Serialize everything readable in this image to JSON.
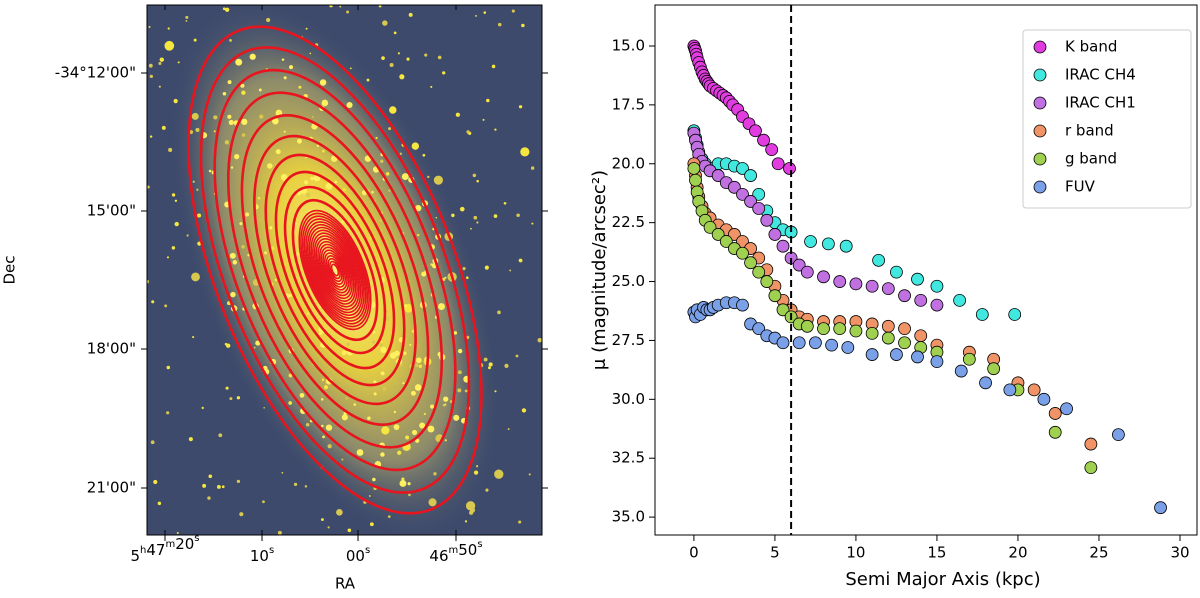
{
  "chart_data": [
    {
      "type": "image",
      "xlabel": "RA",
      "ylabel": "Dec",
      "xtick_labels": [
        [
          [
            "5",
            "h"
          ],
          [
            "47",
            "m"
          ],
          [
            "20",
            "s"
          ]
        ],
        [
          [
            "10",
            "s"
          ]
        ],
        [
          [
            "00",
            "s"
          ]
        ],
        [
          [
            "46",
            "m"
          ],
          [
            "50",
            "s"
          ]
        ]
      ],
      "ytick_labels": [
        "-34°12'00\"",
        "15'00\"",
        "18'00\"",
        "21'00\""
      ]
    },
    {
      "type": "scatter",
      "xlabel": "Semi Major Axis (kpc)",
      "ylabel": "μ (magnitude/arcsec²)",
      "xlim": [
        -2.4,
        31.05
      ],
      "ylim": [
        35.76,
        13.26
      ],
      "xticks": [
        0,
        5,
        10,
        15,
        20,
        25,
        30
      ],
      "yticks": [
        {
          "value": 15,
          "label": "15.0"
        },
        17.5,
        {
          "value": 20,
          "label": "20.0"
        },
        22.5,
        {
          "value": 25,
          "label": "25.0"
        },
        27.5,
        {
          "value": 30,
          "label": "30.0"
        },
        32.5,
        {
          "value": 35,
          "label": "35.0"
        }
      ],
      "vline": 6,
      "legend": "upper right",
      "series": [
        {
          "name": "K band",
          "color": "#e03ce0",
          "x": [
            0,
            0.05,
            0.1,
            0.15,
            0.2,
            0.3,
            0.4,
            0.5,
            0.6,
            0.7,
            0.8,
            0.9,
            1.0,
            1.2,
            1.4,
            1.6,
            1.8,
            2.0,
            2.2,
            2.4,
            2.7,
            3.0,
            3.4,
            3.8,
            4.3,
            4.8,
            5.2,
            5.9
          ],
          "values": [
            15.0,
            15.1,
            15.2,
            15.35,
            15.5,
            15.7,
            15.9,
            16.1,
            16.25,
            16.4,
            16.5,
            16.6,
            16.7,
            16.8,
            16.9,
            17.0,
            17.1,
            17.2,
            17.35,
            17.5,
            17.7,
            18.0,
            18.3,
            18.6,
            19.0,
            19.4,
            20.0,
            20.2
          ]
        },
        {
          "name": "IRAC CH4",
          "color": "#40e8e0",
          "x": [
            0,
            0.1,
            0.2,
            0.3,
            0.5,
            0.7,
            1.0,
            1.5,
            2.0,
            2.5,
            3.0,
            3.5,
            4.0,
            4.5,
            5.0,
            5.5,
            6.0,
            7.2,
            8.3,
            9.4,
            11.4,
            12.5,
            13.8,
            15.0,
            16.4,
            17.8,
            19.8
          ],
          "values": [
            18.6,
            18.9,
            19.2,
            19.5,
            19.8,
            20.0,
            20.2,
            20.0,
            20.0,
            20.1,
            20.2,
            20.5,
            21.3,
            22.0,
            22.5,
            22.8,
            22.9,
            23.3,
            23.4,
            23.5,
            24.1,
            24.6,
            24.9,
            25.2,
            25.8,
            26.4,
            26.4
          ]
        },
        {
          "name": "IRAC CH1",
          "color": "#c070e0",
          "x": [
            0,
            0.1,
            0.2,
            0.3,
            0.5,
            0.7,
            1.0,
            1.5,
            2.0,
            2.5,
            3.0,
            3.5,
            4.0,
            4.5,
            5.0,
            5.5,
            6.0,
            6.5,
            7.0,
            8.0,
            9.0,
            10.0,
            11.0,
            12.0,
            13.0,
            14.0,
            15.0
          ],
          "values": [
            18.7,
            19.0,
            19.3,
            19.6,
            19.9,
            20.1,
            20.3,
            20.5,
            20.8,
            21.0,
            21.3,
            21.6,
            21.9,
            22.4,
            23.0,
            23.5,
            24.0,
            24.3,
            24.6,
            24.8,
            25.0,
            25.1,
            25.2,
            25.3,
            25.6,
            25.8,
            26.0
          ]
        },
        {
          "name": "r band",
          "color": "#f09468",
          "x": [
            0,
            0.1,
            0.2,
            0.3,
            0.5,
            0.7,
            1.0,
            1.5,
            2.0,
            2.5,
            3.0,
            3.5,
            4.0,
            4.5,
            5.0,
            5.5,
            6.0,
            6.5,
            7.0,
            8.0,
            9.0,
            10.0,
            11.0,
            12.0,
            13.0,
            14.0,
            15.0,
            17.0,
            18.5,
            20.0,
            21.0,
            22.3,
            24.5
          ],
          "values": [
            20.0,
            20.5,
            21.0,
            21.4,
            21.8,
            22.1,
            22.3,
            22.6,
            22.8,
            23.0,
            23.3,
            23.6,
            24.0,
            24.5,
            25.2,
            25.8,
            26.2,
            26.5,
            26.6,
            26.7,
            26.7,
            26.7,
            26.8,
            26.9,
            27.0,
            27.3,
            27.7,
            28.0,
            28.3,
            29.3,
            29.6,
            30.6,
            31.9
          ]
        },
        {
          "name": "g band",
          "color": "#a0d050",
          "x": [
            0,
            0.1,
            0.2,
            0.3,
            0.5,
            0.7,
            1.0,
            1.5,
            2.0,
            2.5,
            3.0,
            3.5,
            4.0,
            4.5,
            5.0,
            5.5,
            6.0,
            6.5,
            7.0,
            8.0,
            9.0,
            10.0,
            11.0,
            12.0,
            13.0,
            14.0,
            15.0,
            17.0,
            18.5,
            20.0,
            22.3,
            24.5
          ],
          "values": [
            20.2,
            20.7,
            21.2,
            21.6,
            22.0,
            22.4,
            22.7,
            23.0,
            23.3,
            23.6,
            23.8,
            24.2,
            24.6,
            25.0,
            25.6,
            26.2,
            26.5,
            26.8,
            26.9,
            27.0,
            27.0,
            27.1,
            27.2,
            27.4,
            27.6,
            27.8,
            28.0,
            28.3,
            28.7,
            29.6,
            31.4,
            32.9
          ]
        },
        {
          "name": "FUV",
          "color": "#7aa0e8",
          "x": [
            0,
            0.1,
            0.2,
            0.4,
            0.6,
            0.8,
            1.0,
            1.2,
            1.5,
            2.0,
            2.5,
            3.0,
            3.5,
            4.0,
            4.5,
            5.0,
            5.5,
            6.5,
            7.5,
            8.5,
            9.5,
            11.0,
            12.5,
            13.8,
            15.0,
            16.5,
            18.0,
            19.5,
            21.6,
            23.0,
            26.2,
            28.8
          ],
          "values": [
            26.3,
            26.5,
            26.2,
            26.4,
            26.1,
            26.2,
            26.2,
            26.1,
            26.0,
            25.9,
            25.9,
            26.0,
            26.8,
            27.0,
            27.3,
            27.4,
            27.6,
            27.6,
            27.6,
            27.7,
            27.8,
            28.1,
            28.1,
            28.2,
            28.4,
            28.8,
            29.3,
            29.6,
            30.0,
            30.4,
            31.5,
            34.6
          ]
        }
      ]
    }
  ]
}
